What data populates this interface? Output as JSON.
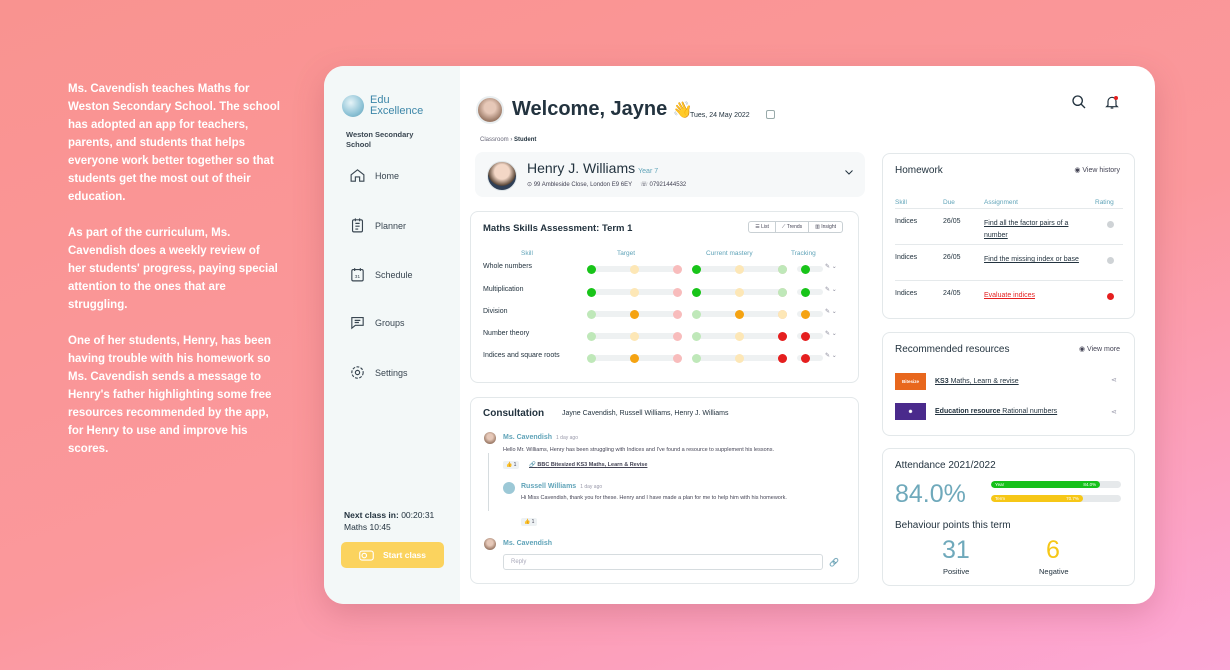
{
  "story": [
    "Ms. Cavendish teaches Maths for Weston Secondary School. The school has adopted an app for teachers, parents, and students that helps everyone work better together so that students get the most out of their education.",
    "As part of the curriculum, Ms. Cavendish does a weekly review of her students' progress, paying special attention to the ones that are struggling.",
    "One of her students, Henry, has been having trouble with his homework so Ms. Cavendish sends a message to Henry's father highlighting some free resources recommended by the app, for Henry to use and improve his scores."
  ],
  "sidebar": {
    "logo_line1": "Edu",
    "logo_line2": "Excellence",
    "school": "Weston Secondary School",
    "nav": [
      {
        "label": "Home",
        "icon": "home-icon"
      },
      {
        "label": "Planner",
        "icon": "planner-icon"
      },
      {
        "label": "Schedule",
        "icon": "schedule-icon"
      },
      {
        "label": "Groups",
        "icon": "groups-icon"
      },
      {
        "label": "Settings",
        "icon": "settings-icon"
      }
    ],
    "next_class_label": "Next class in:",
    "next_class_time": "00:20:31",
    "next_class_subject": "Maths 10:45",
    "start_class": "Start class"
  },
  "header": {
    "welcome": "Welcome, Jayne",
    "wave": "👋",
    "date": "Tues, 24 May 2022",
    "breadcrumb_parent": "Classroom",
    "breadcrumb_sep": " › ",
    "breadcrumb_current": "Student"
  },
  "student": {
    "name": "Henry J. Williams",
    "year": "Year 7",
    "address": "99 Ambleside Close, London E9 6EY",
    "phone": "07921444532"
  },
  "skills": {
    "title": "Maths Skills Assessment: Term 1",
    "views": [
      "List",
      "Trends",
      "Insight"
    ],
    "headers": {
      "skill": "Skill",
      "target": "Target",
      "mastery": "Current mastery",
      "tracking": "Tracking"
    },
    "rows": [
      {
        "skill": "Whole numbers",
        "target": "green",
        "mastery": "green",
        "tracking": "green"
      },
      {
        "skill": "Multiplication",
        "target": "green",
        "mastery": "green",
        "tracking": "green"
      },
      {
        "skill": "Division",
        "target": "amber",
        "mastery": "amber",
        "tracking": "amber"
      },
      {
        "skill": "Number theory",
        "target": "lightgreen",
        "mastery": "lightgreen",
        "tracking": "red"
      },
      {
        "skill": "Indices and square roots",
        "target": "amber",
        "mastery": "lightgreen",
        "tracking": "red"
      }
    ]
  },
  "consultation": {
    "title": "Consultation",
    "participants": "Jayne Cavendish, Russell Williams, Henry J. Williams",
    "messages": [
      {
        "name": "Ms. Cavendish",
        "time": "1 day ago",
        "text": "Hello Mr. Williams, Henry has been struggling with Indices and I've found a resource to supplement his lessons.",
        "likes": "1",
        "link": "BBC Bitesized KS3 Maths, Learn & Revise"
      },
      {
        "name": "Russell Williams",
        "time": "1 day ago",
        "text": "Hi Miss Cavendish, thank you for these. Henry and I have made a plan for me to help him with his homework.",
        "likes": "1"
      },
      {
        "name": "Ms. Cavendish"
      }
    ],
    "reply_placeholder": "Reply"
  },
  "homework": {
    "title": "Homework",
    "view_history": "View history",
    "headers": {
      "skill": "Skill",
      "due": "Due",
      "assignment": "Assignment",
      "rating": "Rating"
    },
    "rows": [
      {
        "skill": "Indices",
        "due": "26/05",
        "assignment": "Find all the factor pairs of a number",
        "rating": "#cfd3d6"
      },
      {
        "skill": "Indices",
        "due": "26/05",
        "assignment": "Find the missing index or base",
        "rating": "#cfd3d6"
      },
      {
        "skill": "Indices",
        "due": "24/05",
        "assignment": "Evaluate indices",
        "rating": "#e51f1f"
      }
    ]
  },
  "resources": {
    "title": "Recommended resources",
    "view_more": "View more",
    "items": [
      {
        "logo": "Bitesize",
        "bold": "KS3",
        "text": " Maths, Learn & revise",
        "color": "#e8671d"
      },
      {
        "logo": "",
        "bold": "Education resource",
        "text": " Rational numbers",
        "color": "#4a2a8c"
      }
    ]
  },
  "attendance": {
    "title": "Attendance 2021/2022",
    "value": "84.0%",
    "bars": [
      {
        "label": "Year",
        "value": "84.0%",
        "pct": 84.0,
        "color": "#15c11a"
      },
      {
        "label": "Term",
        "value": "70.7%",
        "pct": 70.7,
        "color": "#f6c717"
      }
    ],
    "behaviour_title": "Behaviour points this term",
    "positive": "31",
    "positive_label": "Positive",
    "negative": "6",
    "negative_label": "Negative"
  }
}
